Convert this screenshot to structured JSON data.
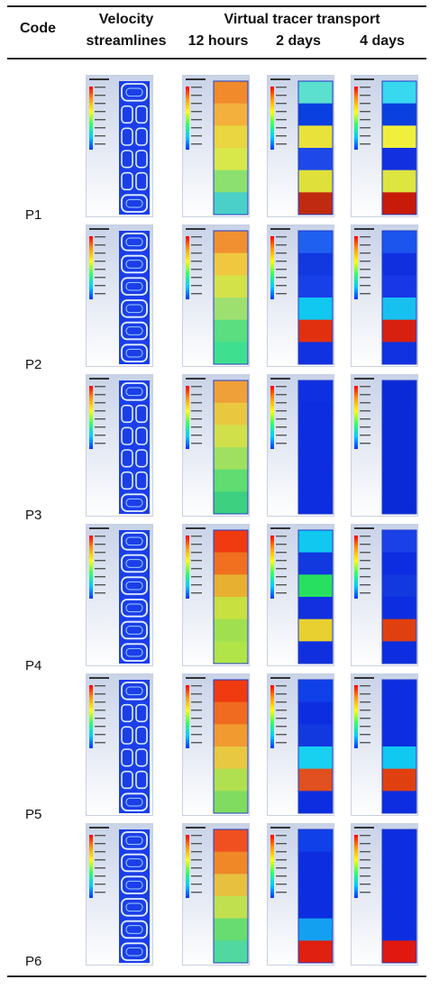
{
  "table": {
    "header": {
      "code": "Code",
      "velocity_line1": "Velocity",
      "velocity_line2": "streamlines",
      "tracer_group": "Virtual tracer transport",
      "t1": "12 hours",
      "t2": "2 days",
      "t3": "4 days"
    },
    "rows": [
      {
        "code": "P1"
      },
      {
        "code": "P2"
      },
      {
        "code": "P3"
      },
      {
        "code": "P4"
      },
      {
        "code": "P5"
      },
      {
        "code": "P6"
      }
    ]
  },
  "palette": {
    "legend_gradient": [
      "#ff0000",
      "#ff9900",
      "#ffff00",
      "#33ff66",
      "#00ccff",
      "#0033ff"
    ],
    "sky_top": "#c9d3e8",
    "sky_bottom": "#ffffff"
  }
}
